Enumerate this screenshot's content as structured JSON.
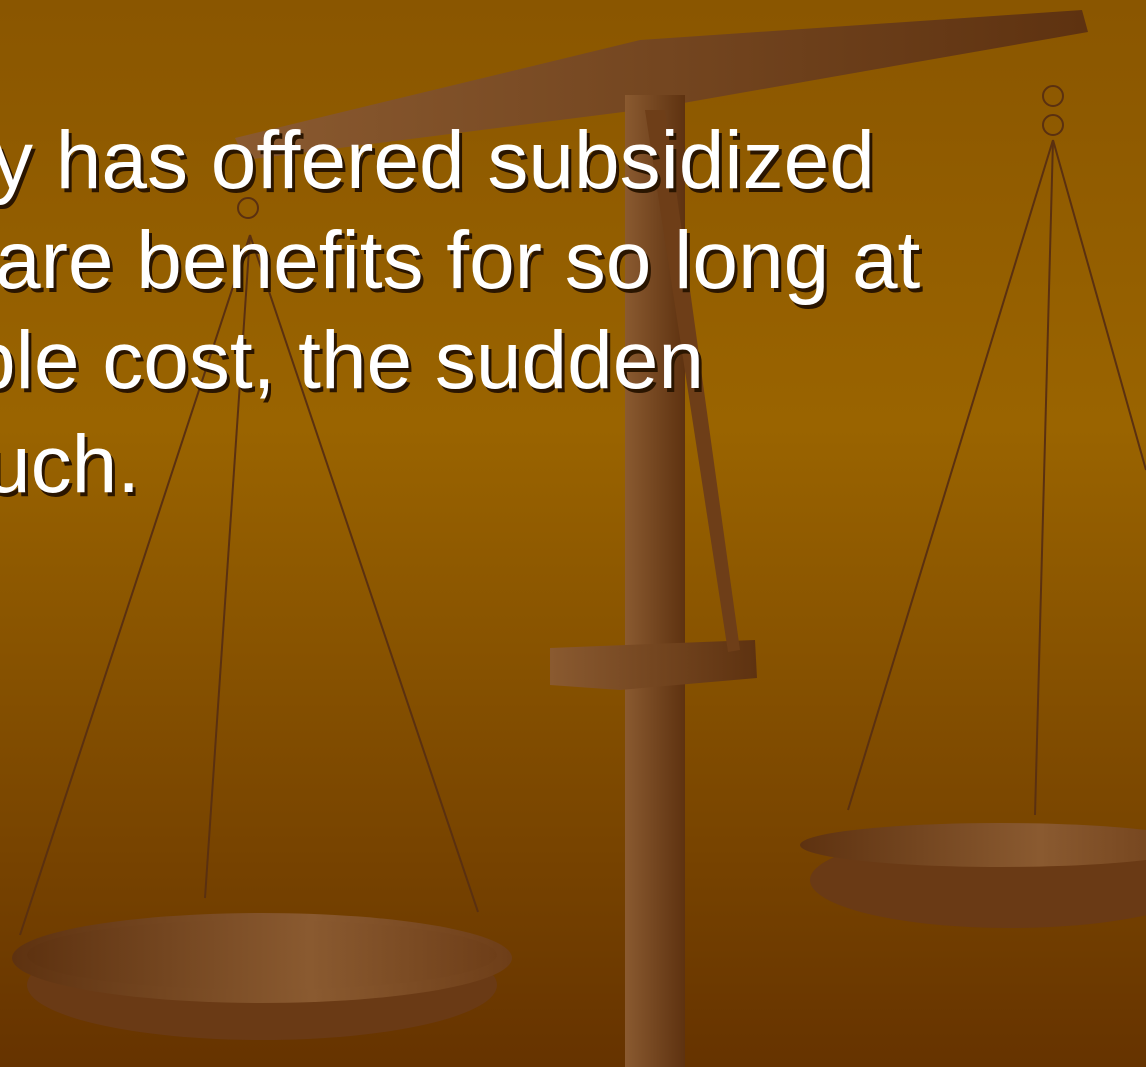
{
  "slide": {
    "lines": [
      "y has offered subsidized",
      "are benefits for so long at",
      "ble cost, the sudden",
      "uch."
    ]
  }
}
